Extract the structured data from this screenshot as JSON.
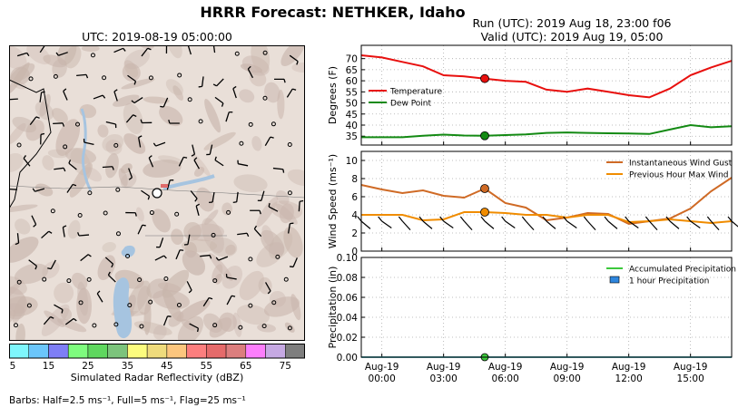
{
  "title": "HRRR Forecast: NETHKER, Idaho",
  "run_line": "Run (UTC): 2019 Aug 18, 23:00 f06",
  "valid_line": "Valid (UTC): 2019 Aug 19, 05:00",
  "map": {
    "title": "UTC: 2019-08-19 05:00:00",
    "colorbar_label": "Simulated Radar Reflectivity (dBZ)",
    "colorbar_ticks": [
      "5",
      "15",
      "25",
      "35",
      "45",
      "55",
      "65",
      "75"
    ],
    "colorbar_colors": [
      "#7ef6fc",
      "#6bc6fb",
      "#7e7ef6",
      "#7efc7e",
      "#5fd75f",
      "#7cc47c",
      "#fcfc7e",
      "#efdb7c",
      "#fcc67e",
      "#fc7e7e",
      "#e56a6a",
      "#dc7e7e",
      "#fc7efc",
      "#c6a9e3",
      "#7e7e7e"
    ],
    "barbs_note": "Barbs: Half=2.5 ms⁻¹, Full=5 ms⁻¹, Flag=25 ms⁻¹"
  },
  "colors": {
    "temperature": "#e8100e",
    "dew_point": "#138a13",
    "gust": "#cf6a25",
    "max_wind": "#f08c00",
    "precip": "#3cc83c",
    "precip_bar": "#2e86de",
    "terrain": "#c9b6ad",
    "water": "#a6c4e0"
  },
  "chart_data": [
    {
      "type": "line",
      "ylabel": "Degrees (F)",
      "ylim": [
        31,
        76
      ],
      "yticks": [
        "35",
        "40",
        "45",
        "50",
        "55",
        "60",
        "65",
        "70"
      ],
      "x": [
        "2019-08-18 23:00",
        "2019-08-19 00:00",
        "2019-08-19 01:00",
        "2019-08-19 02:00",
        "2019-08-19 03:00",
        "2019-08-19 04:00",
        "2019-08-19 05:00",
        "2019-08-19 06:00",
        "2019-08-19 07:00",
        "2019-08-19 08:00",
        "2019-08-19 09:00",
        "2019-08-19 10:00",
        "2019-08-19 11:00",
        "2019-08-19 12:00",
        "2019-08-19 13:00",
        "2019-08-19 14:00",
        "2019-08-19 15:00",
        "2019-08-19 16:00",
        "2019-08-19 17:00"
      ],
      "series": [
        {
          "name": "Temperature",
          "values": [
            71.5,
            70.5,
            68.5,
            66.5,
            62.5,
            62.0,
            61.0,
            60.0,
            59.5,
            56.0,
            55.0,
            56.5,
            55.0,
            53.5,
            52.5,
            56.5,
            62.5,
            66.0,
            69.0
          ]
        },
        {
          "name": "Dew Point",
          "values": [
            34.5,
            34.5,
            34.5,
            35.2,
            35.7,
            35.3,
            35.2,
            35.5,
            35.8,
            36.5,
            36.7,
            36.5,
            36.3,
            36.2,
            36.0,
            38.0,
            40.0,
            39.0,
            39.5
          ]
        }
      ],
      "highlight_index": 6,
      "legend": "left"
    },
    {
      "type": "line",
      "ylabel": "Wind Speed  (ms⁻¹)",
      "ylim": [
        0,
        11
      ],
      "yticks": [
        "0",
        "2",
        "4",
        "6",
        "8",
        "10"
      ],
      "series": [
        {
          "name": "Instantaneous Wind Gust",
          "values": [
            7.3,
            6.8,
            6.4,
            6.7,
            6.1,
            5.9,
            6.9,
            5.3,
            4.8,
            3.4,
            3.7,
            4.2,
            4.1,
            3.0,
            3.3,
            3.6,
            4.7,
            6.6,
            8.1
          ]
        },
        {
          "name": "Previous Hour Max Wind",
          "values": [
            4.0,
            4.0,
            4.0,
            3.4,
            3.5,
            4.3,
            4.3,
            4.2,
            4.0,
            4.0,
            3.7,
            4.0,
            4.0,
            3.2,
            3.3,
            3.5,
            3.3,
            3.1,
            3.3
          ]
        }
      ],
      "highlight_index": 6,
      "legend": "top-right",
      "barbs": true
    },
    {
      "type": "line",
      "ylabel": "Precipitation (in)",
      "ylim": [
        0,
        0.1
      ],
      "yticks": [
        "0.00",
        "0.02",
        "0.04",
        "0.06",
        "0.08",
        "0.10"
      ],
      "series": [
        {
          "name": "Accumulated Precipitation",
          "values": [
            0,
            0,
            0,
            0,
            0,
            0,
            0,
            0,
            0,
            0,
            0,
            0,
            0,
            0,
            0,
            0,
            0,
            0,
            0
          ]
        },
        {
          "name": "1 hour Precipitation",
          "values": [
            0,
            0,
            0,
            0,
            0,
            0,
            0,
            0,
            0,
            0,
            0,
            0,
            0,
            0,
            0,
            0,
            0,
            0,
            0
          ]
        }
      ],
      "highlight_index": 6,
      "legend": "top-right",
      "xtick_labels": [
        [
          "Aug-19",
          "00:00"
        ],
        [
          "Aug-19",
          "03:00"
        ],
        [
          "Aug-19",
          "06:00"
        ],
        [
          "Aug-19",
          "09:00"
        ],
        [
          "Aug-19",
          "12:00"
        ],
        [
          "Aug-19",
          "15:00"
        ]
      ]
    }
  ]
}
